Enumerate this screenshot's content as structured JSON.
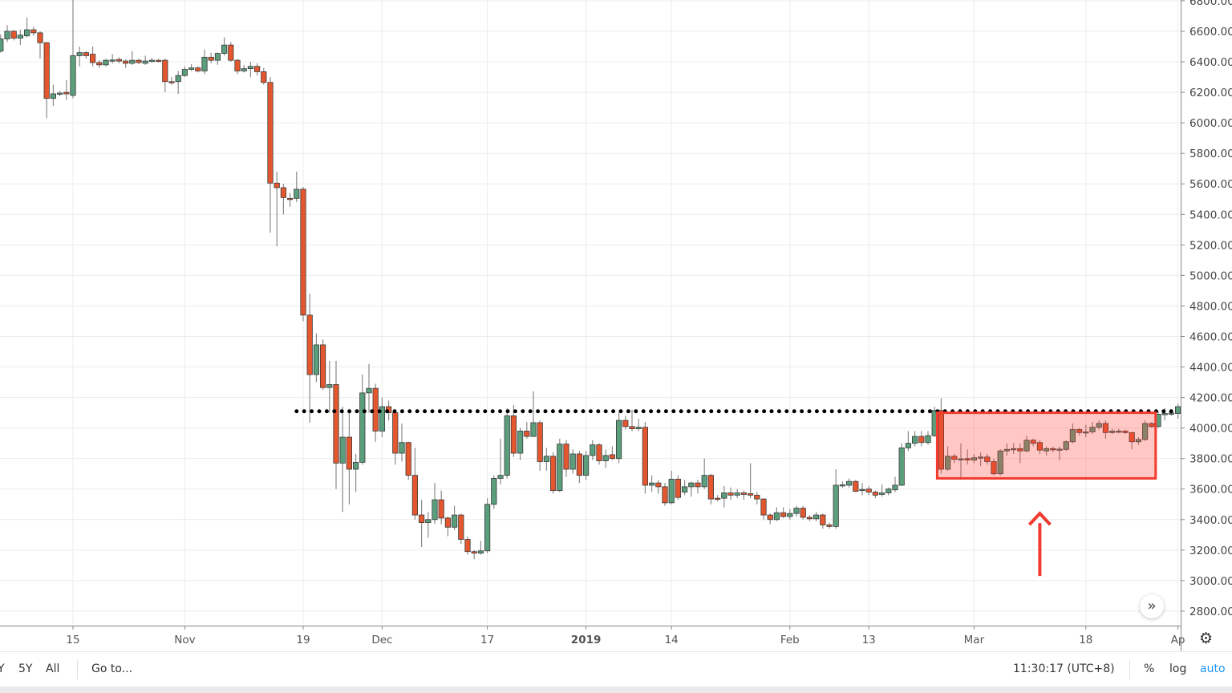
{
  "chart_data": {
    "type": "candlestick",
    "interval": "1D",
    "ylim": [
      2705,
      6805
    ],
    "y_ticks": [
      "6800.00",
      "6600.00",
      "6400.00",
      "6200.00",
      "6000.00",
      "5800.00",
      "5600.00",
      "5400.00",
      "5200.00",
      "5000.00",
      "4800.00",
      "4600.00",
      "4400.00",
      "4200.00",
      "4000.00",
      "3800.00",
      "3600.00",
      "3400.00",
      "3200.00",
      "3000.00",
      "2800.00"
    ],
    "x_ticks": [
      {
        "label": "15",
        "date": "2018-10-15"
      },
      {
        "label": "Nov",
        "date": "2018-11-01"
      },
      {
        "label": "19",
        "date": "2018-11-19"
      },
      {
        "label": "Dec",
        "date": "2018-12-01"
      },
      {
        "label": "17",
        "date": "2018-12-17"
      },
      {
        "label": "2019",
        "date": "2019-01-01",
        "bold": true
      },
      {
        "label": "14",
        "date": "2019-01-14"
      },
      {
        "label": "Feb",
        "date": "2019-02-01"
      },
      {
        "label": "13",
        "date": "2019-02-13"
      },
      {
        "label": "Mar",
        "date": "2019-03-01"
      },
      {
        "label": "18",
        "date": "2019-03-18"
      },
      {
        "label": "Ap",
        "date": "2019-04-01"
      }
    ],
    "grid": true,
    "colors": {
      "up": "#5a9e7c",
      "down": "#e4572e",
      "level_line": "#000000",
      "box_fill": "#ff3b30",
      "box_stroke": "#f23a2f",
      "arrow": "#f23a2f"
    },
    "columns": [
      "date",
      "open",
      "high",
      "low",
      "close"
    ],
    "candles": [
      [
        "2018-10-04",
        6470,
        6580,
        6460,
        6550
      ],
      [
        "2018-10-05",
        6550,
        6640,
        6530,
        6600
      ],
      [
        "2018-10-06",
        6600,
        6610,
        6540,
        6555
      ],
      [
        "2018-10-07",
        6555,
        6610,
        6510,
        6575
      ],
      [
        "2018-10-08",
        6570,
        6690,
        6560,
        6610
      ],
      [
        "2018-10-09",
        6610,
        6630,
        6570,
        6590
      ],
      [
        "2018-10-10",
        6590,
        6600,
        6420,
        6525
      ],
      [
        "2018-10-11",
        6525,
        6530,
        6030,
        6160
      ],
      [
        "2018-10-12",
        6160,
        6250,
        6110,
        6190
      ],
      [
        "2018-10-13",
        6190,
        6210,
        6175,
        6195
      ],
      [
        "2018-10-14",
        6200,
        6280,
        6150,
        6190
      ],
      [
        "2018-10-15",
        6180,
        6860,
        6160,
        6440
      ],
      [
        "2018-10-16",
        6440,
        6500,
        6370,
        6460
      ],
      [
        "2018-10-17",
        6460,
        6470,
        6420,
        6440
      ],
      [
        "2018-10-18",
        6450,
        6500,
        6370,
        6395
      ],
      [
        "2018-10-19",
        6395,
        6410,
        6360,
        6380
      ],
      [
        "2018-10-20",
        6380,
        6420,
        6370,
        6410
      ],
      [
        "2018-10-21",
        6410,
        6450,
        6390,
        6412
      ],
      [
        "2018-10-22",
        6415,
        6430,
        6390,
        6405
      ],
      [
        "2018-10-23",
        6405,
        6415,
        6360,
        6390
      ],
      [
        "2018-10-24",
        6390,
        6470,
        6380,
        6410
      ],
      [
        "2018-10-25",
        6410,
        6420,
        6385,
        6395
      ],
      [
        "2018-10-26",
        6390,
        6440,
        6380,
        6405
      ],
      [
        "2018-10-27",
        6402,
        6425,
        6395,
        6410
      ],
      [
        "2018-10-28",
        6410,
        6420,
        6395,
        6402
      ],
      [
        "2018-10-29",
        6410,
        6420,
        6200,
        6270
      ],
      [
        "2018-10-30",
        6270,
        6300,
        6250,
        6268
      ],
      [
        "2018-10-31",
        6270,
        6340,
        6190,
        6310
      ],
      [
        "2018-11-01",
        6310,
        6370,
        6300,
        6350
      ],
      [
        "2018-11-02",
        6350,
        6385,
        6340,
        6360
      ],
      [
        "2018-11-03",
        6360,
        6370,
        6330,
        6340
      ],
      [
        "2018-11-04",
        6340,
        6480,
        6320,
        6430
      ],
      [
        "2018-11-05",
        6430,
        6460,
        6390,
        6410
      ],
      [
        "2018-11-06",
        6410,
        6460,
        6380,
        6455
      ],
      [
        "2018-11-07",
        6455,
        6560,
        6440,
        6510
      ],
      [
        "2018-11-08",
        6510,
        6530,
        6400,
        6410
      ],
      [
        "2018-11-09",
        6410,
        6420,
        6320,
        6340
      ],
      [
        "2018-11-10",
        6340,
        6380,
        6330,
        6355
      ],
      [
        "2018-11-11",
        6355,
        6400,
        6300,
        6370
      ],
      [
        "2018-11-12",
        6370,
        6390,
        6310,
        6335
      ],
      [
        "2018-11-13",
        6335,
        6360,
        6250,
        6265
      ],
      [
        "2018-11-14",
        6265,
        6300,
        5280,
        5605
      ],
      [
        "2018-11-15",
        5605,
        5680,
        5190,
        5575
      ],
      [
        "2018-11-16",
        5575,
        5600,
        5400,
        5510
      ],
      [
        "2018-11-17",
        5505,
        5540,
        5450,
        5500
      ],
      [
        "2018-11-18",
        5505,
        5680,
        5480,
        5565
      ],
      [
        "2018-11-19",
        5565,
        5580,
        4700,
        4740
      ],
      [
        "2018-11-20",
        4740,
        4880,
        4035,
        4350
      ],
      [
        "2018-11-21",
        4350,
        4620,
        4300,
        4545
      ],
      [
        "2018-11-22",
        4545,
        4580,
        4250,
        4265
      ],
      [
        "2018-11-23",
        4265,
        4440,
        4100,
        4285
      ],
      [
        "2018-11-24",
        4285,
        4440,
        3600,
        3770
      ],
      [
        "2018-11-25",
        3770,
        4140,
        3450,
        3940
      ],
      [
        "2018-11-26",
        3940,
        4120,
        3500,
        3730
      ],
      [
        "2018-11-27",
        3730,
        3830,
        3580,
        3775
      ],
      [
        "2018-11-28",
        3775,
        4350,
        3760,
        4230
      ],
      [
        "2018-11-29",
        4230,
        4420,
        4100,
        4260
      ],
      [
        "2018-11-30",
        4260,
        4290,
        3910,
        3980
      ],
      [
        "2018-12-01",
        3980,
        4200,
        3940,
        4140
      ],
      [
        "2018-12-02",
        4140,
        4180,
        4050,
        4100
      ],
      [
        "2018-12-03",
        4100,
        4110,
        3760,
        3835
      ],
      [
        "2018-12-04",
        3835,
        4030,
        3780,
        3905
      ],
      [
        "2018-12-05",
        3905,
        3910,
        3660,
        3690
      ],
      [
        "2018-12-06",
        3690,
        3870,
        3400,
        3430
      ],
      [
        "2018-12-07",
        3430,
        3530,
        3220,
        3380
      ],
      [
        "2018-12-08",
        3380,
        3450,
        3280,
        3400
      ],
      [
        "2018-12-09",
        3400,
        3640,
        3370,
        3530
      ],
      [
        "2018-12-10",
        3530,
        3590,
        3370,
        3410
      ],
      [
        "2018-12-11",
        3410,
        3420,
        3290,
        3350
      ],
      [
        "2018-12-12",
        3350,
        3490,
        3330,
        3430
      ],
      [
        "2018-12-13",
        3430,
        3440,
        3240,
        3270
      ],
      [
        "2018-12-14",
        3270,
        3290,
        3170,
        3190
      ],
      [
        "2018-12-15",
        3190,
        3200,
        3140,
        3180
      ],
      [
        "2018-12-16",
        3180,
        3260,
        3170,
        3195
      ],
      [
        "2018-12-17",
        3195,
        3540,
        3180,
        3500
      ],
      [
        "2018-12-18",
        3500,
        3690,
        3470,
        3670
      ],
      [
        "2018-12-19",
        3670,
        3930,
        3630,
        3690
      ],
      [
        "2018-12-20",
        3690,
        4130,
        3670,
        4080
      ],
      [
        "2018-12-21",
        4080,
        4150,
        3810,
        3835
      ],
      [
        "2018-12-22",
        3835,
        4000,
        3790,
        3980
      ],
      [
        "2018-12-23",
        3980,
        4040,
        3930,
        3945
      ],
      [
        "2018-12-24",
        3945,
        4240,
        3940,
        4035
      ],
      [
        "2018-12-25",
        4035,
        4050,
        3720,
        3780
      ],
      [
        "2018-12-26",
        3780,
        3870,
        3720,
        3815
      ],
      [
        "2018-12-27",
        3815,
        3840,
        3570,
        3590
      ],
      [
        "2018-12-28",
        3590,
        3930,
        3580,
        3895
      ],
      [
        "2018-12-29",
        3895,
        3920,
        3680,
        3730
      ],
      [
        "2018-12-30",
        3730,
        3860,
        3700,
        3830
      ],
      [
        "2018-12-31",
        3830,
        3850,
        3640,
        3690
      ],
      [
        "2019-01-01",
        3690,
        3850,
        3660,
        3820
      ],
      [
        "2019-01-02",
        3820,
        3920,
        3790,
        3890
      ],
      [
        "2019-01-03",
        3890,
        3900,
        3760,
        3785
      ],
      [
        "2019-01-04",
        3785,
        3860,
        3740,
        3820
      ],
      [
        "2019-01-05",
        3825,
        3880,
        3790,
        3800
      ],
      [
        "2019-01-06",
        3800,
        4100,
        3770,
        4050
      ],
      [
        "2019-01-07",
        4050,
        4080,
        3990,
        4010
      ],
      [
        "2019-01-08",
        4010,
        4120,
        3980,
        3995
      ],
      [
        "2019-01-09",
        3995,
        4060,
        3980,
        4005
      ],
      [
        "2019-01-10",
        4005,
        4040,
        3570,
        3625
      ],
      [
        "2019-01-11",
        3625,
        3690,
        3580,
        3640
      ],
      [
        "2019-01-12",
        3640,
        3660,
        3570,
        3615
      ],
      [
        "2019-01-13",
        3615,
        3640,
        3490,
        3510
      ],
      [
        "2019-01-14",
        3510,
        3720,
        3500,
        3665
      ],
      [
        "2019-01-15",
        3665,
        3690,
        3530,
        3545
      ],
      [
        "2019-01-16",
        3580,
        3660,
        3560,
        3615
      ],
      [
        "2019-01-17",
        3615,
        3650,
        3550,
        3640
      ],
      [
        "2019-01-18",
        3640,
        3660,
        3570,
        3615
      ],
      [
        "2019-01-19",
        3615,
        3800,
        3600,
        3690
      ],
      [
        "2019-01-20",
        3690,
        3700,
        3500,
        3535
      ],
      [
        "2019-01-21",
        3540,
        3560,
        3520,
        3538
      ],
      [
        "2019-01-22",
        3540,
        3620,
        3480,
        3575
      ],
      [
        "2019-01-23",
        3575,
        3610,
        3530,
        3560
      ],
      [
        "2019-01-24",
        3560,
        3600,
        3540,
        3575
      ],
      [
        "2019-01-25",
        3575,
        3590,
        3530,
        3565
      ],
      [
        "2019-01-26",
        3570,
        3770,
        3540,
        3560
      ],
      [
        "2019-01-27",
        3560,
        3580,
        3500,
        3535
      ],
      [
        "2019-01-28",
        3535,
        3540,
        3400,
        3430
      ],
      [
        "2019-01-29",
        3430,
        3440,
        3370,
        3400
      ],
      [
        "2019-01-30",
        3400,
        3480,
        3390,
        3445
      ],
      [
        "2019-01-31",
        3445,
        3480,
        3410,
        3420
      ],
      [
        "2019-02-01",
        3420,
        3470,
        3400,
        3440
      ],
      [
        "2019-02-02",
        3440,
        3490,
        3420,
        3475
      ],
      [
        "2019-02-03",
        3475,
        3490,
        3400,
        3415
      ],
      [
        "2019-02-04",
        3415,
        3430,
        3390,
        3405
      ],
      [
        "2019-02-05",
        3405,
        3450,
        3390,
        3430
      ],
      [
        "2019-02-06",
        3430,
        3440,
        3340,
        3365
      ],
      [
        "2019-02-07",
        3365,
        3380,
        3340,
        3355
      ],
      [
        "2019-02-08",
        3355,
        3730,
        3340,
        3625
      ],
      [
        "2019-02-09",
        3625,
        3650,
        3610,
        3628
      ],
      [
        "2019-02-10",
        3625,
        3670,
        3610,
        3650
      ],
      [
        "2019-02-11",
        3650,
        3660,
        3580,
        3585
      ],
      [
        "2019-02-12",
        3595,
        3640,
        3560,
        3598
      ],
      [
        "2019-02-13",
        3600,
        3620,
        3560,
        3580
      ],
      [
        "2019-02-14",
        3580,
        3590,
        3540,
        3560
      ],
      [
        "2019-02-15",
        3565,
        3630,
        3550,
        3575
      ],
      [
        "2019-02-16",
        3575,
        3610,
        3560,
        3600
      ],
      [
        "2019-02-17",
        3595,
        3680,
        3580,
        3625
      ],
      [
        "2019-02-18",
        3625,
        3900,
        3620,
        3870
      ],
      [
        "2019-02-19",
        3870,
        3980,
        3850,
        3900
      ],
      [
        "2019-02-20",
        3900,
        3980,
        3880,
        3945
      ],
      [
        "2019-02-21",
        3945,
        3980,
        3880,
        3905
      ],
      [
        "2019-02-22",
        3905,
        3980,
        3890,
        3950
      ],
      [
        "2019-02-23",
        3950,
        4140,
        3940,
        4115
      ],
      [
        "2019-02-24",
        4115,
        4195,
        3700,
        3730
      ],
      [
        "2019-02-25",
        3730,
        3880,
        3720,
        3815
      ],
      [
        "2019-02-26",
        3815,
        3830,
        3770,
        3795
      ],
      [
        "2019-02-27",
        3795,
        3900,
        3660,
        3798
      ],
      [
        "2019-02-28",
        3800,
        3860,
        3760,
        3790
      ],
      [
        "2019-03-01",
        3790,
        3830,
        3770,
        3805
      ],
      [
        "2019-03-02",
        3805,
        3840,
        3750,
        3810
      ],
      [
        "2019-03-03",
        3810,
        3830,
        3760,
        3780
      ],
      [
        "2019-03-04",
        3780,
        3800,
        3690,
        3700
      ],
      [
        "2019-03-05",
        3700,
        3860,
        3690,
        3850
      ],
      [
        "2019-03-06",
        3850,
        3900,
        3820,
        3860
      ],
      [
        "2019-03-07",
        3860,
        3900,
        3830,
        3865
      ],
      [
        "2019-03-08",
        3865,
        3900,
        3770,
        3850
      ],
      [
        "2019-03-09",
        3850,
        3950,
        3840,
        3920
      ],
      [
        "2019-03-10",
        3920,
        3930,
        3880,
        3900
      ],
      [
        "2019-03-11",
        3905,
        3920,
        3830,
        3855
      ],
      [
        "2019-03-12",
        3850,
        3880,
        3820,
        3865
      ],
      [
        "2019-03-13",
        3865,
        3880,
        3840,
        3860
      ],
      [
        "2019-03-14",
        3860,
        3880,
        3790,
        3862
      ],
      [
        "2019-03-15",
        3860,
        3920,
        3850,
        3910
      ],
      [
        "2019-03-16",
        3910,
        4030,
        3900,
        3990
      ],
      [
        "2019-03-17",
        3990,
        4000,
        3950,
        3970
      ],
      [
        "2019-03-18",
        3970,
        4020,
        3940,
        3975
      ],
      [
        "2019-03-19",
        3975,
        4040,
        3960,
        4005
      ],
      [
        "2019-03-20",
        4005,
        4050,
        3990,
        4030
      ],
      [
        "2019-03-21",
        4030,
        4050,
        3930,
        3970
      ],
      [
        "2019-03-22",
        3970,
        3995,
        3960,
        3980
      ],
      [
        "2019-03-23",
        3980,
        3995,
        3965,
        3980
      ],
      [
        "2019-03-24",
        3980,
        3990,
        3960,
        3970
      ],
      [
        "2019-03-25",
        3970,
        3975,
        3860,
        3910
      ],
      [
        "2019-03-26",
        3910,
        3940,
        3890,
        3925
      ],
      [
        "2019-03-27",
        3925,
        4050,
        3915,
        4030
      ],
      [
        "2019-03-28",
        4030,
        4040,
        4000,
        4010
      ],
      [
        "2019-03-29",
        4010,
        4110,
        4000,
        4090
      ],
      [
        "2019-03-30",
        4090,
        4130,
        4050,
        4095
      ],
      [
        "2019-03-31",
        4095,
        4110,
        4080,
        4098
      ],
      [
        "2019-04-01",
        4095,
        4160,
        4060,
        4140
      ]
    ],
    "annotations": {
      "level_line": {
        "price": 4110,
        "from": "2018-11-18",
        "to": "2019-04-01",
        "style": "dotted"
      },
      "range_box": {
        "from": "2019-02-24",
        "to": "2019-03-28",
        "top": 4100,
        "bottom": 3670
      },
      "arrow": {
        "date": "2019-03-11",
        "from_price": 3030,
        "to_price": 3440,
        "direction": "up"
      }
    }
  },
  "toolbar": {
    "range_partial": "Y",
    "range_5y": "5Y",
    "range_all": "All",
    "goto": "Go to...",
    "clock": "11:30:17 (UTC+8)",
    "percent": "%",
    "log": "log",
    "auto": "auto"
  },
  "icons": {
    "settings": "gear-icon",
    "scroll": "double-chevron-right-icon"
  }
}
